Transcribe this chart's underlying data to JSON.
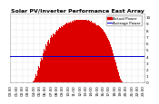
{
  "title": "Solar PV/Inverter Performance East Array",
  "legend_actual": "Actual Power",
  "legend_avg": "Average Power",
  "bg_color": "#ffffff",
  "plot_bg_color": "#ffffff",
  "bar_color": "#dd0000",
  "avg_line_color": "#0000cc",
  "grid_color": "#aaaaaa",
  "text_color": "#000000",
  "title_color": "#000000",
  "avg_line_y": 0.4,
  "n_bars": 144,
  "bar_heights": [
    0.0,
    0.0,
    0.0,
    0.0,
    0.0,
    0.0,
    0.0,
    0.0,
    0.0,
    0.0,
    0.0,
    0.0,
    0.0,
    0.0,
    0.0,
    0.0,
    0.0,
    0.0,
    0.0,
    0.0,
    0.0,
    0.0,
    0.0,
    0.0,
    0.01,
    0.03,
    0.07,
    0.12,
    0.1,
    0.18,
    0.25,
    0.22,
    0.32,
    0.38,
    0.35,
    0.45,
    0.52,
    0.48,
    0.58,
    0.55,
    0.62,
    0.65,
    0.6,
    0.68,
    0.72,
    0.7,
    0.75,
    0.73,
    0.78,
    0.8,
    0.79,
    0.82,
    0.84,
    0.83,
    0.86,
    0.85,
    0.88,
    0.87,
    0.89,
    0.9,
    0.91,
    0.9,
    0.92,
    0.91,
    0.93,
    0.92,
    0.94,
    0.93,
    0.95,
    0.94,
    0.95,
    0.96,
    0.96,
    0.95,
    0.96,
    0.95,
    0.96,
    0.95,
    0.96,
    0.96,
    0.95,
    0.96,
    0.95,
    0.94,
    0.95,
    0.94,
    0.93,
    0.94,
    0.92,
    0.91,
    0.9,
    0.91,
    0.89,
    0.88,
    0.87,
    0.86,
    0.84,
    0.83,
    0.82,
    0.8,
    0.78,
    0.76,
    0.74,
    0.71,
    0.68,
    0.65,
    0.62,
    0.58,
    0.54,
    0.5,
    0.45,
    0.4,
    0.35,
    0.3,
    0.25,
    0.2,
    0.15,
    0.1,
    0.06,
    0.03,
    0.01,
    0.0,
    0.0,
    0.0,
    0.0,
    0.0,
    0.0,
    0.0,
    0.0,
    0.0,
    0.0,
    0.0,
    0.0,
    0.0,
    0.0,
    0.0,
    0.0,
    0.0,
    0.0,
    0.0,
    0.0,
    0.0,
    0.0,
    0.0
  ],
  "ylim": [
    0,
    1.05
  ],
  "ylabel_fontsize": 3.5,
  "xlabel_fontsize": 3.0,
  "title_fontsize": 4.5,
  "legend_fontsize": 3.0,
  "x_tick_count": 24,
  "y_tick_labels": [
    "0",
    "1",
    "2",
    "3",
    "4",
    "5",
    "6",
    "7",
    "8",
    "9",
    "10"
  ],
  "y_tick_vals": [
    0.0,
    0.1,
    0.2,
    0.3,
    0.4,
    0.5,
    0.6,
    0.7,
    0.8,
    0.9,
    1.0
  ]
}
